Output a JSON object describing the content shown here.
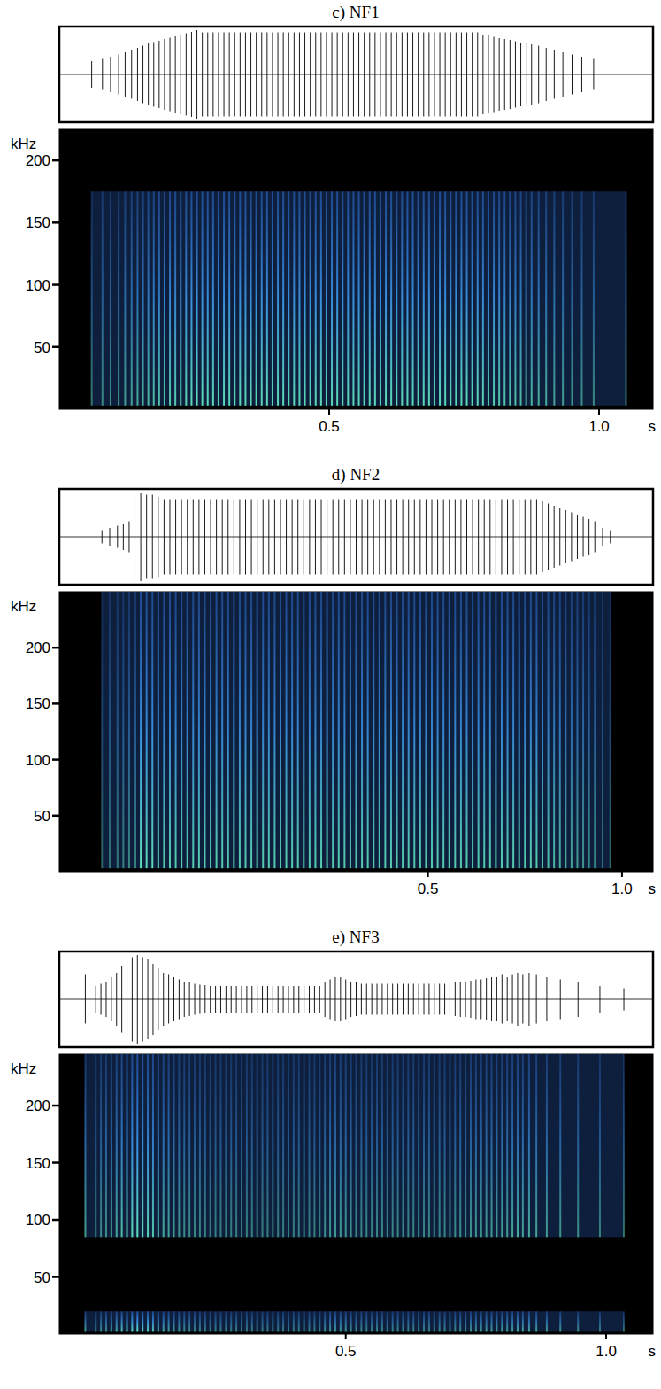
{
  "chart_data": [
    {
      "type": "spectrogram",
      "title": "c) NF1",
      "ylabel": "kHz",
      "xlabel": "s",
      "xlim": [
        0,
        1.1
      ],
      "ylim": [
        0,
        225
      ],
      "xticks": [
        0.5,
        {
          "value": 1,
          "label": "1.0"
        }
      ],
      "yticks": [
        50,
        100,
        150,
        200
      ],
      "color": "#2f6fd8",
      "bands": [
        {
          "fmin": 3,
          "fmax": 175
        }
      ],
      "pulses": {
        "t": [
          0.06,
          0.08,
          0.095,
          0.11,
          0.122,
          0.134,
          0.145,
          0.155,
          0.165,
          0.175,
          0.185,
          0.195,
          0.205,
          0.215,
          0.225,
          0.235,
          0.245,
          0.255,
          0.265,
          0.275,
          0.285,
          0.295,
          0.305,
          0.315,
          0.325,
          0.335,
          0.345,
          0.355,
          0.365,
          0.375,
          0.385,
          0.395,
          0.405,
          0.415,
          0.425,
          0.435,
          0.445,
          0.455,
          0.465,
          0.475,
          0.485,
          0.495,
          0.505,
          0.515,
          0.525,
          0.535,
          0.545,
          0.555,
          0.565,
          0.575,
          0.585,
          0.595,
          0.605,
          0.615,
          0.625,
          0.635,
          0.645,
          0.655,
          0.665,
          0.675,
          0.685,
          0.695,
          0.705,
          0.715,
          0.725,
          0.735,
          0.745,
          0.755,
          0.765,
          0.775,
          0.785,
          0.795,
          0.805,
          0.815,
          0.825,
          0.835,
          0.845,
          0.855,
          0.865,
          0.875,
          0.888,
          0.902,
          0.917,
          0.933,
          0.95,
          0.968,
          0.99,
          1.05
        ],
        "amplitude": [
          0.3,
          0.35,
          0.4,
          0.45,
          0.5,
          0.55,
          0.6,
          0.65,
          0.7,
          0.73,
          0.76,
          0.8,
          0.83,
          0.86,
          0.9,
          0.93,
          0.96,
          1.0,
          0.95,
          0.95,
          0.95,
          0.95,
          0.95,
          0.95,
          0.95,
          0.95,
          0.95,
          0.95,
          0.95,
          0.95,
          0.95,
          0.95,
          0.95,
          0.95,
          0.95,
          0.95,
          0.95,
          0.95,
          0.95,
          0.95,
          0.95,
          0.95,
          0.95,
          0.95,
          0.95,
          0.95,
          0.95,
          0.95,
          0.95,
          0.95,
          0.95,
          0.95,
          0.95,
          0.95,
          0.95,
          0.95,
          0.95,
          0.95,
          0.95,
          0.95,
          0.95,
          0.95,
          0.95,
          0.95,
          0.95,
          0.95,
          0.95,
          0.95,
          0.95,
          0.95,
          0.9,
          0.88,
          0.85,
          0.82,
          0.8,
          0.78,
          0.75,
          0.72,
          0.7,
          0.68,
          0.65,
          0.6,
          0.55,
          0.5,
          0.45,
          0.4,
          0.35,
          0.3
        ]
      }
    },
    {
      "type": "spectrogram",
      "title": "d) NF2",
      "ylabel": "kHz",
      "xlabel": "s",
      "xlim": [
        -0.45,
        1.08
      ],
      "ylim": [
        0,
        250
      ],
      "xticks": [
        0.5,
        {
          "value": 1,
          "label": "1.0"
        }
      ],
      "yticks": [
        50,
        100,
        150,
        200
      ],
      "color": "#2f6fd8",
      "bands": [
        {
          "fmin": 3,
          "fmax": 250
        }
      ],
      "pulses": {
        "t": [
          -0.34,
          -0.32,
          -0.3,
          -0.285,
          -0.27,
          -0.255,
          -0.24,
          -0.225,
          -0.21,
          -0.195,
          -0.18,
          -0.165,
          -0.15,
          -0.135,
          -0.12,
          -0.105,
          -0.09,
          -0.075,
          -0.06,
          -0.045,
          -0.03,
          -0.015,
          0,
          0.015,
          0.03,
          0.045,
          0.06,
          0.075,
          0.09,
          0.105,
          0.12,
          0.135,
          0.15,
          0.165,
          0.18,
          0.195,
          0.21,
          0.225,
          0.24,
          0.255,
          0.27,
          0.285,
          0.3,
          0.315,
          0.33,
          0.345,
          0.36,
          0.375,
          0.39,
          0.405,
          0.42,
          0.435,
          0.45,
          0.465,
          0.48,
          0.495,
          0.51,
          0.525,
          0.54,
          0.555,
          0.57,
          0.585,
          0.6,
          0.615,
          0.63,
          0.645,
          0.66,
          0.675,
          0.69,
          0.705,
          0.72,
          0.735,
          0.75,
          0.765,
          0.78,
          0.795,
          0.81,
          0.825,
          0.84,
          0.855,
          0.87,
          0.885,
          0.9,
          0.915,
          0.93,
          0.95,
          0.97
        ],
        "amplitude": [
          0.15,
          0.2,
          0.25,
          0.3,
          0.35,
          1.0,
          1.0,
          0.95,
          0.95,
          0.9,
          0.85,
          0.85,
          0.85,
          0.85,
          0.85,
          0.85,
          0.85,
          0.85,
          0.85,
          0.85,
          0.85,
          0.85,
          0.85,
          0.85,
          0.85,
          0.85,
          0.85,
          0.85,
          0.85,
          0.85,
          0.85,
          0.85,
          0.85,
          0.85,
          0.85,
          0.85,
          0.85,
          0.85,
          0.85,
          0.85,
          0.85,
          0.85,
          0.85,
          0.85,
          0.85,
          0.85,
          0.85,
          0.85,
          0.85,
          0.85,
          0.85,
          0.85,
          0.85,
          0.85,
          0.85,
          0.85,
          0.85,
          0.85,
          0.85,
          0.85,
          0.85,
          0.85,
          0.85,
          0.85,
          0.85,
          0.85,
          0.85,
          0.85,
          0.85,
          0.85,
          0.85,
          0.85,
          0.85,
          0.85,
          0.85,
          0.8,
          0.75,
          0.7,
          0.65,
          0.6,
          0.55,
          0.5,
          0.45,
          0.4,
          0.35,
          0.2,
          0.15
        ]
      }
    },
    {
      "type": "spectrogram",
      "title": "e) NF3",
      "ylabel": "kHz",
      "xlabel": "s",
      "xlim": [
        -0.05,
        1.09
      ],
      "ylim": [
        0,
        245
      ],
      "xticks": [
        0.5,
        {
          "value": 1,
          "label": "1.0"
        }
      ],
      "yticks": [
        50,
        100,
        150,
        200
      ],
      "color": "#2f6fd8",
      "bands": [
        {
          "fmin": 85,
          "fmax": 245
        },
        {
          "fmin": 2,
          "fmax": 20
        }
      ],
      "pulses": {
        "t": [
          0,
          0.02,
          0.03,
          0.04,
          0.05,
          0.06,
          0.07,
          0.08,
          0.09,
          0.1,
          0.11,
          0.12,
          0.13,
          0.14,
          0.15,
          0.16,
          0.17,
          0.18,
          0.19,
          0.2,
          0.21,
          0.22,
          0.23,
          0.24,
          0.25,
          0.26,
          0.27,
          0.28,
          0.29,
          0.3,
          0.31,
          0.32,
          0.33,
          0.34,
          0.35,
          0.36,
          0.37,
          0.38,
          0.39,
          0.4,
          0.41,
          0.42,
          0.43,
          0.44,
          0.45,
          0.46,
          0.47,
          0.48,
          0.49,
          0.5,
          0.51,
          0.52,
          0.53,
          0.54,
          0.55,
          0.56,
          0.57,
          0.58,
          0.59,
          0.6,
          0.61,
          0.62,
          0.63,
          0.64,
          0.65,
          0.66,
          0.67,
          0.68,
          0.69,
          0.7,
          0.71,
          0.72,
          0.73,
          0.74,
          0.75,
          0.76,
          0.77,
          0.78,
          0.79,
          0.8,
          0.81,
          0.82,
          0.83,
          0.84,
          0.852,
          0.866,
          0.886,
          0.912,
          0.946,
          0.988,
          1.034
        ],
        "amplitude": [
          0.55,
          0.3,
          0.35,
          0.4,
          0.5,
          0.6,
          0.75,
          0.85,
          0.95,
          1.0,
          0.95,
          0.9,
          0.8,
          0.7,
          0.6,
          0.55,
          0.5,
          0.45,
          0.4,
          0.38,
          0.35,
          0.33,
          0.32,
          0.3,
          0.3,
          0.3,
          0.3,
          0.3,
          0.3,
          0.3,
          0.3,
          0.3,
          0.3,
          0.3,
          0.3,
          0.3,
          0.3,
          0.3,
          0.3,
          0.3,
          0.3,
          0.3,
          0.3,
          0.3,
          0.3,
          0.4,
          0.45,
          0.5,
          0.5,
          0.45,
          0.4,
          0.38,
          0.35,
          0.35,
          0.35,
          0.35,
          0.35,
          0.35,
          0.35,
          0.35,
          0.35,
          0.35,
          0.35,
          0.35,
          0.35,
          0.35,
          0.35,
          0.35,
          0.35,
          0.35,
          0.38,
          0.4,
          0.4,
          0.42,
          0.45,
          0.45,
          0.48,
          0.5,
          0.5,
          0.55,
          0.5,
          0.55,
          0.6,
          0.55,
          0.6,
          0.55,
          0.5,
          0.45,
          0.4,
          0.3,
          0.25
        ]
      }
    }
  ]
}
